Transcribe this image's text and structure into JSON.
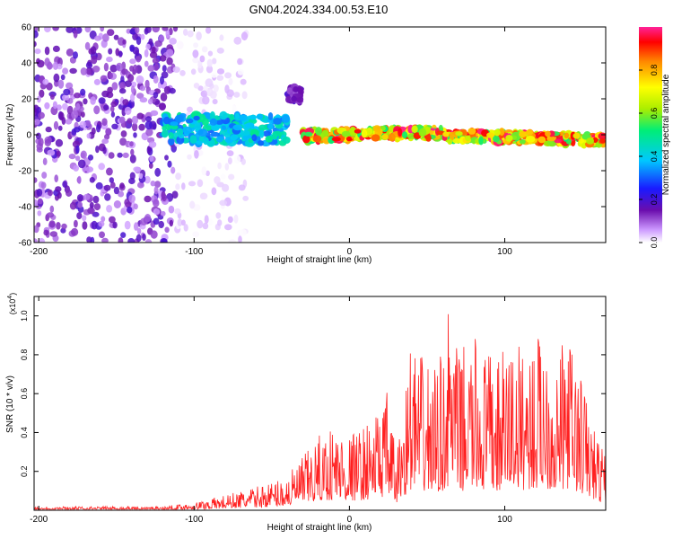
{
  "title": "GN04.2024.334.00.53.E10",
  "colors": {
    "snr_line": "#ff2020",
    "spectrogram_background": "#ffffff",
    "colormap": [
      "#ffffff",
      "#cc99ff",
      "#6a0dad",
      "#1a1aff",
      "#00c8ff",
      "#00ee77",
      "#aaee00",
      "#ffff00",
      "#ff8800",
      "#ff0000",
      "#ff2299"
    ]
  },
  "chart_data": [
    {
      "type": "heatmap",
      "xlabel": "Height of straight line (km)",
      "ylabel": "Frequency (Hz)",
      "xlim": [
        -203,
        165
      ],
      "ylim": [
        -60,
        60
      ],
      "xticks": [
        "-200",
        "-100",
        "0",
        "100"
      ],
      "yticks": [
        "60",
        "40",
        "20",
        "0",
        "-20",
        "-40",
        "-60"
      ],
      "colorbar": {
        "label": "Normalized spectral amplitude",
        "range": [
          0,
          1
        ],
        "ticks": [
          "0.0",
          "0.2",
          "0.4",
          "0.6",
          "0.8"
        ]
      },
      "description_bands": [
        {
          "x_range": [
            -203,
            -112
          ],
          "freq_range": [
            -60,
            60
          ],
          "amplitude": [
            0.05,
            0.2
          ]
        },
        {
          "x_range": [
            -112,
            -65
          ],
          "freq_range": [
            -60,
            60
          ],
          "amplitude": [
            0.0,
            0.05
          ]
        },
        {
          "x_range": [
            -120,
            -40
          ],
          "freq_center": 3,
          "freq_halfwidth": 8,
          "amplitude": [
            0.3,
            0.5
          ]
        },
        {
          "x_range": [
            -40,
            -30
          ],
          "freq_center": 22,
          "freq_halfwidth": 5,
          "amplitude": [
            0.1,
            0.2
          ]
        },
        {
          "x_range": [
            -30,
            165
          ],
          "freq_center": 0,
          "freq_halfwidth": 3,
          "amplitude": [
            0.5,
            1.0
          ]
        }
      ]
    },
    {
      "type": "line",
      "xlabel": "Height of straight line (km)",
      "ylabel": "SNR (10 * v/v)",
      "y_multiplier": "(x10",
      "y_multiplier_exp": "4",
      "xlim": [
        -203,
        165
      ],
      "ylim": [
        0,
        1.1
      ],
      "xticks": [
        "-200",
        "-100",
        "0",
        "100"
      ],
      "yticks": [
        "1.0",
        "0.8",
        "0.6",
        "0.4",
        "0.2"
      ],
      "series": [
        {
          "x": [
            -203,
            -150,
            -120,
            -100,
            -80,
            -60,
            -40,
            -30,
            -20,
            -10,
            0,
            10,
            20,
            25,
            30,
            35,
            40,
            45,
            50,
            55,
            60,
            65,
            70,
            75,
            80,
            85,
            90,
            95,
            100,
            105,
            110,
            115,
            120,
            125,
            130,
            135,
            140,
            145,
            150,
            155,
            160,
            165
          ],
          "y": [
            0.02,
            0.02,
            0.02,
            0.04,
            0.08,
            0.12,
            0.18,
            0.28,
            0.38,
            0.45,
            0.4,
            0.44,
            0.55,
            0.62,
            0.28,
            0.6,
            0.9,
            0.8,
            0.78,
            0.75,
            0.82,
            1.1,
            0.8,
            0.86,
            0.9,
            0.85,
            0.82,
            0.78,
            0.85,
            0.92,
            0.85,
            0.9,
            0.88,
            1.0,
            0.85,
            0.8,
            0.95,
            0.8,
            0.7,
            0.5,
            0.38,
            0.3
          ]
        }
      ]
    }
  ]
}
